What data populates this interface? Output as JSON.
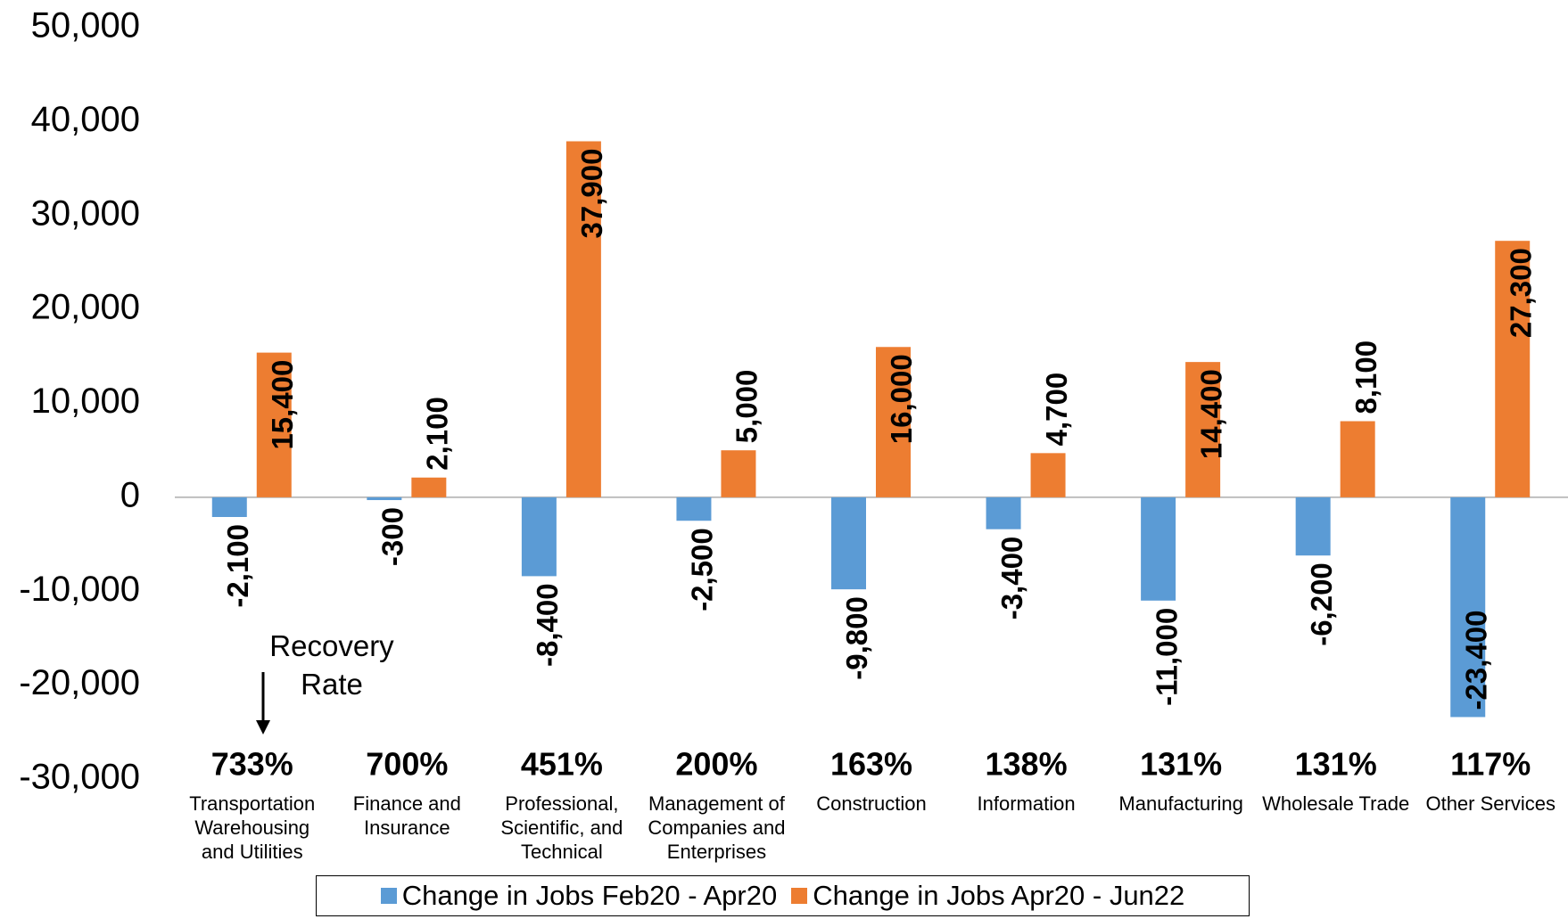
{
  "chart_data": {
    "type": "bar",
    "categories": [
      "Transportation Warehousing and Utilities",
      "Finance and Insurance",
      "Professional, Scientific, and Technical",
      "Management of Companies and Enterprises",
      "Construction",
      "Information",
      "Manufacturing",
      "Wholesale Trade",
      "Other Services"
    ],
    "series": [
      {
        "name": "Change in Jobs Feb20 - Apr20",
        "color": "#5b9bd5",
        "values": [
          -2100,
          -300,
          -8400,
          -2500,
          -9800,
          -3400,
          -11000,
          -6200,
          -23400
        ],
        "value_labels": [
          "-2,100",
          "-300",
          "-8,400",
          "-2,500",
          "-9,800",
          "-3,400",
          "-11,000",
          "-6,200",
          "-23,400"
        ]
      },
      {
        "name": "Change in Jobs Apr20 - Jun22",
        "color": "#ed7d31",
        "values": [
          15400,
          2100,
          37900,
          5000,
          16000,
          4700,
          14400,
          8100,
          27300
        ],
        "value_labels": [
          "15,400",
          "2,100",
          "37,900",
          "5,000",
          "16,000",
          "4,700",
          "14,400",
          "8,100",
          "27,300"
        ]
      }
    ],
    "recovery_rates": [
      "733%",
      "700%",
      "451%",
      "200%",
      "163%",
      "138%",
      "131%",
      "131%",
      "117%"
    ],
    "annotation": "Recovery Rate",
    "ylim": [
      -30000,
      50000
    ],
    "yticks": [
      {
        "value": -30000,
        "label": "-30,000"
      },
      {
        "value": -20000,
        "label": "-20,000"
      },
      {
        "value": -10000,
        "label": "-10,000"
      },
      0,
      {
        "value": 10000,
        "label": "10,000"
      },
      {
        "value": 20000,
        "label": "20,000"
      },
      {
        "value": 30000,
        "label": "30,000"
      },
      {
        "value": 40000,
        "label": "40,000"
      },
      {
        "value": 50000,
        "label": "50,000"
      }
    ],
    "grid": false,
    "legend": "bottom"
  }
}
